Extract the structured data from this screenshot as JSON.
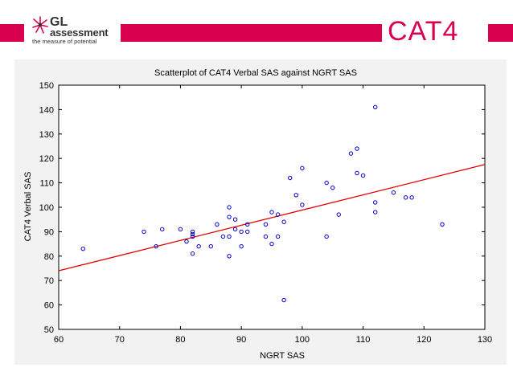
{
  "brand": {
    "logo_line1": "GL",
    "logo_line2": "assessment",
    "tagline": "the measure of potential",
    "product_logo": "CAT4",
    "accent_color": "#d9004f",
    "logo_icon": "star-burst-icon"
  },
  "chart_data": {
    "type": "scatter",
    "title": "Scatterplot of CAT4 Verbal SAS against NGRT SAS",
    "xlabel": "NGRT SAS",
    "ylabel": "CAT4 Verbal SAS",
    "xlim": [
      60,
      130
    ],
    "ylim": [
      50,
      150
    ],
    "xticks": [
      60,
      70,
      80,
      90,
      100,
      110,
      120,
      130
    ],
    "yticks": [
      50,
      60,
      70,
      80,
      90,
      100,
      110,
      120,
      130,
      140,
      150
    ],
    "grid": false,
    "legend": "none",
    "point_color": "#0000cc",
    "trend_color": "#e00000",
    "points": [
      [
        64,
        83
      ],
      [
        74,
        90
      ],
      [
        76,
        84
      ],
      [
        77,
        91
      ],
      [
        80,
        91
      ],
      [
        81,
        86
      ],
      [
        82,
        81
      ],
      [
        82,
        88
      ],
      [
        82,
        89
      ],
      [
        82,
        90
      ],
      [
        83,
        84
      ],
      [
        85,
        84
      ],
      [
        86,
        93
      ],
      [
        87,
        88
      ],
      [
        88,
        80
      ],
      [
        88,
        88
      ],
      [
        88,
        96
      ],
      [
        88,
        100
      ],
      [
        89,
        91
      ],
      [
        89,
        95
      ],
      [
        90,
        84
      ],
      [
        90,
        90
      ],
      [
        91,
        90
      ],
      [
        91,
        93
      ],
      [
        94,
        88
      ],
      [
        94,
        93
      ],
      [
        95,
        85
      ],
      [
        95,
        98
      ],
      [
        96,
        88
      ],
      [
        96,
        97
      ],
      [
        97,
        62
      ],
      [
        97,
        94
      ],
      [
        98,
        112
      ],
      [
        99,
        105
      ],
      [
        100,
        101
      ],
      [
        100,
        116
      ],
      [
        104,
        88
      ],
      [
        104,
        110
      ],
      [
        105,
        108
      ],
      [
        106,
        97
      ],
      [
        108,
        122
      ],
      [
        109,
        114
      ],
      [
        109,
        124
      ],
      [
        110,
        113
      ],
      [
        112,
        98
      ],
      [
        112,
        102
      ],
      [
        112,
        141
      ],
      [
        115,
        106
      ],
      [
        117,
        104
      ],
      [
        118,
        104
      ],
      [
        123,
        93
      ]
    ],
    "trend_line": {
      "x": [
        60,
        130
      ],
      "y": [
        74,
        117.5
      ]
    }
  }
}
